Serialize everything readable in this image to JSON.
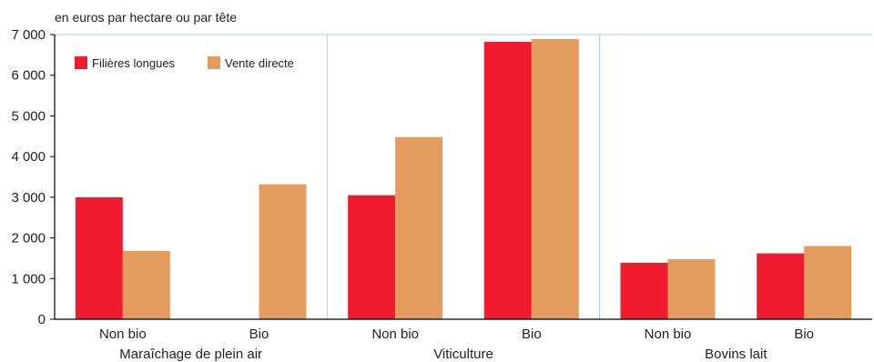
{
  "chart_data": {
    "type": "bar",
    "subtitle": "en euros par hectare ou par tête",
    "ylim": [
      0,
      7000
    ],
    "y_ticks": [
      "7 000",
      "6 000",
      "5 000",
      "4 000",
      "3 000",
      "2 000",
      "1 000",
      "0"
    ],
    "y_tick_values": [
      7000,
      6000,
      5000,
      4000,
      3000,
      2000,
      1000,
      0
    ],
    "categories": [
      "Non bio",
      "Bio",
      "Non bio",
      "Bio",
      "Non bio",
      "Bio"
    ],
    "groups": [
      "Maraîchage de plein air",
      "Viticulture",
      "Bovins lait"
    ],
    "series": [
      {
        "name": "Filières longues",
        "color": "#ee1c2e",
        "values": [
          3000,
          null,
          3050,
          6820,
          1390,
          1620
        ]
      },
      {
        "name": "Vente directe",
        "color": "#e39c5e",
        "values": [
          1680,
          3320,
          4480,
          6890,
          1480,
          1800
        ]
      }
    ],
    "grid": "vertical separators between groups",
    "legend_position": "top-left"
  }
}
